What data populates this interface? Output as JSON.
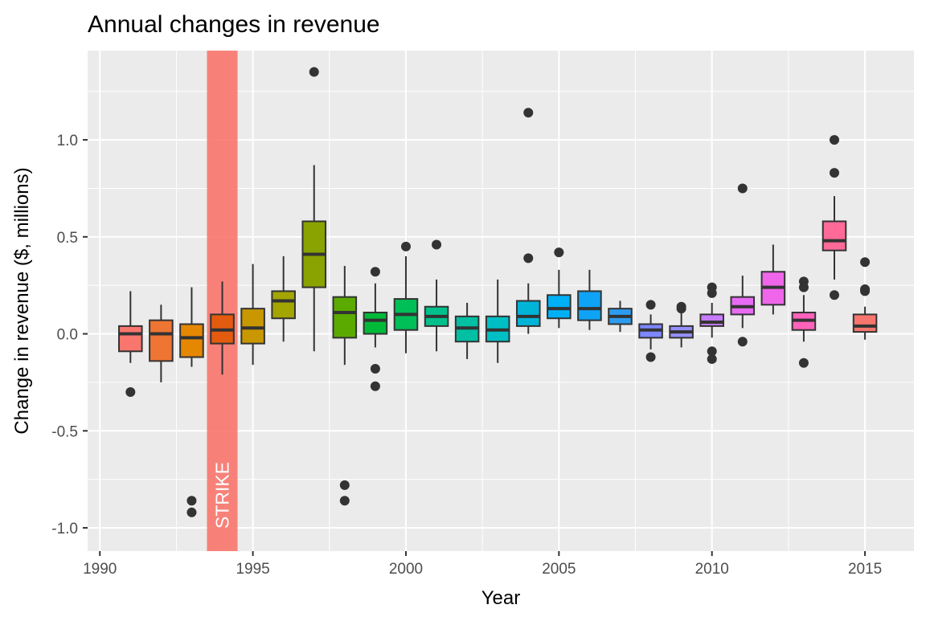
{
  "chart_data": {
    "type": "box",
    "title": "Annual changes in revenue",
    "xlabel": "Year",
    "ylabel": "Change in revenue ($, millions)",
    "xlim": [
      1989.6,
      2016.6
    ],
    "ylim": [
      -1.12,
      1.46
    ],
    "x_ticks": [
      1990,
      1995,
      2000,
      2005,
      2010,
      2015
    ],
    "x_tick_labels": [
      "1990",
      "1995",
      "2000",
      "2005",
      "2010",
      "2015"
    ],
    "y_ticks": [
      -1.0,
      -0.5,
      0.0,
      0.5,
      1.0
    ],
    "y_tick_labels": [
      "-1.0",
      "-0.5",
      "0.0",
      "0.5",
      "1.0"
    ],
    "grid": true,
    "legend": "none",
    "highlight": {
      "x0": 1993.5,
      "x1": 1994.5,
      "color": "#F8766D",
      "opacity": 0.9,
      "label": "STRIKE"
    },
    "boxes": [
      {
        "x": 1991,
        "low": -0.15,
        "q1": -0.09,
        "median": 0.0,
        "q3": 0.04,
        "high": 0.22,
        "outliers": [
          -0.3
        ],
        "color": "#F8766D"
      },
      {
        "x": 1992,
        "low": -0.25,
        "q1": -0.14,
        "median": 0.0,
        "q3": 0.07,
        "high": 0.15,
        "outliers": [],
        "color": "#EE7533"
      },
      {
        "x": 1993,
        "low": -0.17,
        "q1": -0.12,
        "median": -0.02,
        "q3": 0.05,
        "high": 0.24,
        "outliers": [
          -0.86,
          -0.92
        ],
        "color": "#E58700"
      },
      {
        "x": 1994,
        "low": -0.21,
        "q1": -0.05,
        "median": 0.02,
        "q3": 0.1,
        "high": 0.27,
        "outliers": [],
        "color": "#E35B0E"
      },
      {
        "x": 1995,
        "low": -0.16,
        "q1": -0.05,
        "median": 0.03,
        "q3": 0.13,
        "high": 0.36,
        "outliers": [],
        "color": "#C99800"
      },
      {
        "x": 1996,
        "low": -0.04,
        "q1": 0.08,
        "median": 0.17,
        "q3": 0.22,
        "high": 0.4,
        "outliers": [],
        "color": "#A3A500"
      },
      {
        "x": 1997,
        "low": -0.09,
        "q1": 0.24,
        "median": 0.41,
        "q3": 0.58,
        "high": 0.87,
        "outliers": [
          1.35
        ],
        "color": "#8AA300"
      },
      {
        "x": 1998,
        "low": -0.16,
        "q1": -0.02,
        "median": 0.11,
        "q3": 0.19,
        "high": 0.35,
        "outliers": [
          -0.78,
          -0.86
        ],
        "color": "#5BAA00"
      },
      {
        "x": 1999,
        "low": -0.07,
        "q1": 0.0,
        "median": 0.07,
        "q3": 0.11,
        "high": 0.26,
        "outliers": [
          0.32,
          -0.18,
          -0.27
        ],
        "color": "#00BA38"
      },
      {
        "x": 2000,
        "low": -0.1,
        "q1": 0.02,
        "median": 0.1,
        "q3": 0.18,
        "high": 0.4,
        "outliers": [
          0.45
        ],
        "color": "#00BF57"
      },
      {
        "x": 2001,
        "low": -0.09,
        "q1": 0.04,
        "median": 0.09,
        "q3": 0.14,
        "high": 0.28,
        "outliers": [
          0.46
        ],
        "color": "#00C08B"
      },
      {
        "x": 2002,
        "low": -0.13,
        "q1": -0.04,
        "median": 0.03,
        "q3": 0.09,
        "high": 0.16,
        "outliers": [],
        "color": "#00BFA2"
      },
      {
        "x": 2003,
        "low": -0.15,
        "q1": -0.04,
        "median": 0.02,
        "q3": 0.09,
        "high": 0.28,
        "outliers": [],
        "color": "#00BFC4"
      },
      {
        "x": 2004,
        "low": 0.0,
        "q1": 0.04,
        "median": 0.09,
        "q3": 0.17,
        "high": 0.26,
        "outliers": [
          1.14,
          0.39
        ],
        "color": "#00B4D8"
      },
      {
        "x": 2005,
        "low": 0.03,
        "q1": 0.08,
        "median": 0.13,
        "q3": 0.2,
        "high": 0.33,
        "outliers": [
          0.42
        ],
        "color": "#00B0F6"
      },
      {
        "x": 2006,
        "low": 0.02,
        "q1": 0.07,
        "median": 0.13,
        "q3": 0.22,
        "high": 0.33,
        "outliers": [],
        "color": "#0FA3F5"
      },
      {
        "x": 2007,
        "low": 0.01,
        "q1": 0.05,
        "median": 0.09,
        "q3": 0.13,
        "high": 0.17,
        "outliers": [],
        "color": "#2D9CF0"
      },
      {
        "x": 2008,
        "low": -0.08,
        "q1": -0.02,
        "median": 0.02,
        "q3": 0.05,
        "high": 0.1,
        "outliers": [
          0.15,
          -0.12
        ],
        "color": "#7D87FF"
      },
      {
        "x": 2009,
        "low": -0.07,
        "q1": -0.02,
        "median": 0.01,
        "q3": 0.04,
        "high": 0.12,
        "outliers": [
          0.14,
          0.13
        ],
        "color": "#9590FF"
      },
      {
        "x": 2010,
        "low": -0.02,
        "q1": 0.04,
        "median": 0.06,
        "q3": 0.1,
        "high": 0.16,
        "outliers": [
          0.24,
          0.21,
          -0.09,
          -0.13
        ],
        "color": "#C77CFF"
      },
      {
        "x": 2011,
        "low": 0.03,
        "q1": 0.1,
        "median": 0.14,
        "q3": 0.19,
        "high": 0.3,
        "outliers": [
          0.75,
          -0.04
        ],
        "color": "#E76BF3"
      },
      {
        "x": 2012,
        "low": 0.1,
        "q1": 0.15,
        "median": 0.24,
        "q3": 0.32,
        "high": 0.46,
        "outliers": [],
        "color": "#F066EA"
      },
      {
        "x": 2013,
        "low": -0.04,
        "q1": 0.02,
        "median": 0.07,
        "q3": 0.11,
        "high": 0.2,
        "outliers": [
          0.27,
          0.24,
          -0.15
        ],
        "color": "#FF62BC"
      },
      {
        "x": 2014,
        "low": 0.28,
        "q1": 0.43,
        "median": 0.48,
        "q3": 0.58,
        "high": 0.71,
        "outliers": [
          1.0,
          0.83,
          0.2
        ],
        "color": "#FF6A98"
      },
      {
        "x": 2015,
        "low": -0.03,
        "q1": 0.01,
        "median": 0.04,
        "q3": 0.1,
        "high": 0.14,
        "outliers": [
          0.37,
          0.23,
          0.22
        ],
        "color": "#F8766D"
      }
    ]
  }
}
